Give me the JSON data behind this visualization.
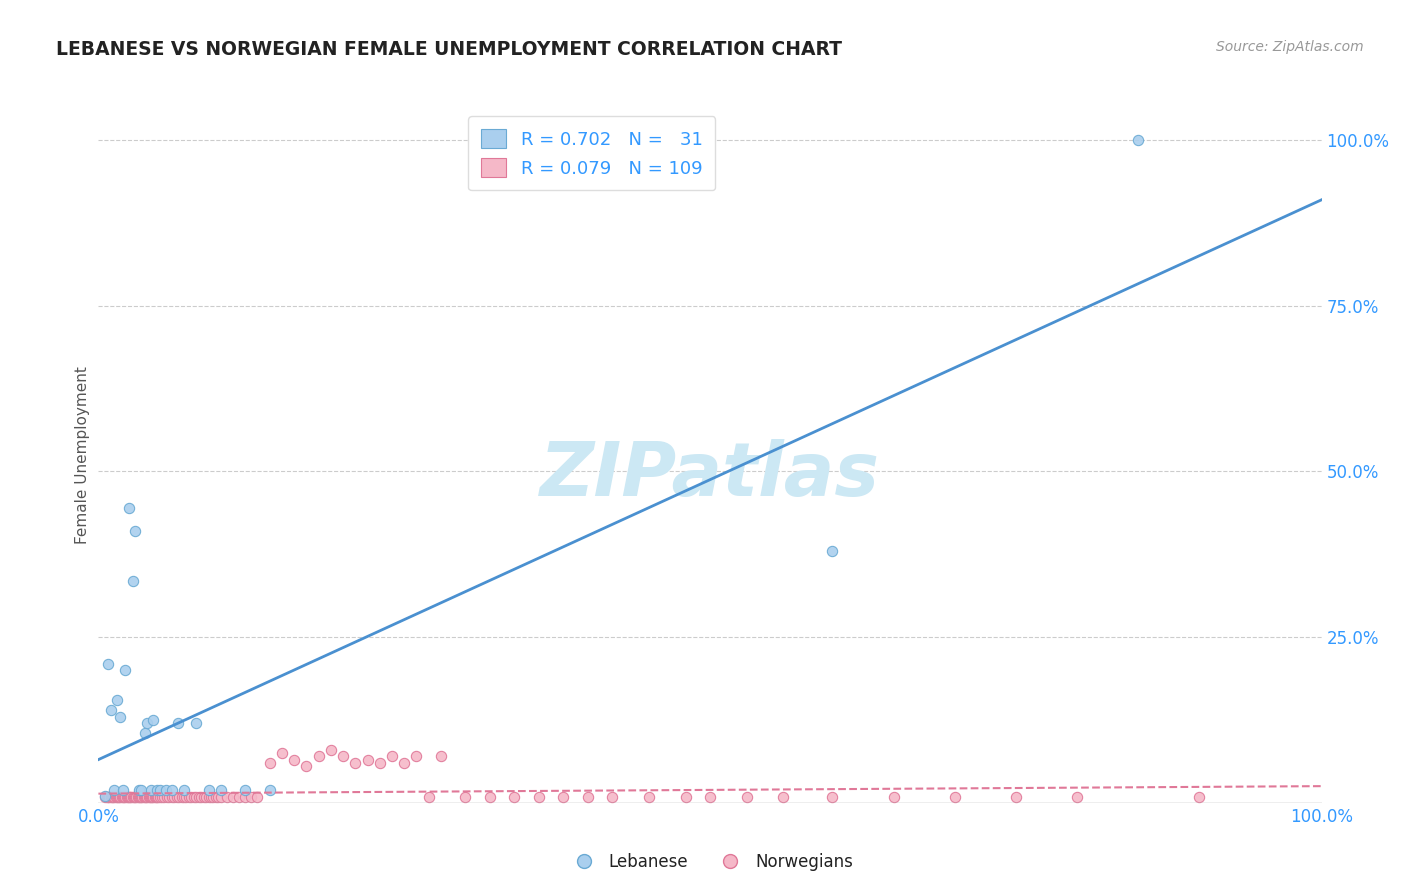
{
  "title": "LEBANESE VS NORWEGIAN FEMALE UNEMPLOYMENT CORRELATION CHART",
  "source": "Source: ZipAtlas.com",
  "ylabel": "Female Unemployment",
  "xlabel": "",
  "background_color": "#ffffff",
  "watermark": "ZIPatlas",
  "watermark_color": "#cce8f4",
  "lebanese_color": "#aacfee",
  "norwegian_color": "#f5b8c8",
  "lebanese_edge": "#6aaad4",
  "norwegian_edge": "#e07898",
  "line1_color": "#4a90d0",
  "line2_color": "#e07898",
  "title_color": "#222222",
  "axis_color": "#3399FF",
  "grid_color": "#cccccc",
  "xlim": [
    0,
    1.0
  ],
  "ylim": [
    0,
    1.05
  ],
  "leb_scatter_x": [
    0.005,
    0.008,
    0.01,
    0.013,
    0.015,
    0.018,
    0.02,
    0.022,
    0.025,
    0.028,
    0.03,
    0.033,
    0.035,
    0.038,
    0.04,
    0.043,
    0.045,
    0.048,
    0.05,
    0.055,
    0.06,
    0.065,
    0.07,
    0.08,
    0.09,
    0.1,
    0.12,
    0.14,
    0.6,
    0.85
  ],
  "leb_scatter_y": [
    0.01,
    0.21,
    0.14,
    0.02,
    0.155,
    0.13,
    0.02,
    0.2,
    0.445,
    0.335,
    0.41,
    0.02,
    0.02,
    0.105,
    0.12,
    0.02,
    0.125,
    0.02,
    0.02,
    0.02,
    0.02,
    0.12,
    0.02,
    0.12,
    0.02,
    0.02,
    0.02,
    0.02,
    0.38,
    1.0
  ],
  "nor_scatter_x": [
    0.005,
    0.007,
    0.008,
    0.009,
    0.01,
    0.011,
    0.012,
    0.013,
    0.014,
    0.015,
    0.016,
    0.017,
    0.018,
    0.019,
    0.02,
    0.021,
    0.022,
    0.023,
    0.024,
    0.025,
    0.026,
    0.027,
    0.028,
    0.029,
    0.03,
    0.031,
    0.032,
    0.033,
    0.034,
    0.035,
    0.036,
    0.037,
    0.038,
    0.039,
    0.04,
    0.041,
    0.042,
    0.043,
    0.044,
    0.045,
    0.046,
    0.047,
    0.048,
    0.049,
    0.05,
    0.052,
    0.054,
    0.056,
    0.058,
    0.06,
    0.062,
    0.064,
    0.066,
    0.068,
    0.07,
    0.072,
    0.074,
    0.076,
    0.078,
    0.08,
    0.082,
    0.084,
    0.086,
    0.088,
    0.09,
    0.092,
    0.094,
    0.096,
    0.098,
    0.1,
    0.105,
    0.11,
    0.115,
    0.12,
    0.125,
    0.13,
    0.14,
    0.15,
    0.16,
    0.17,
    0.18,
    0.19,
    0.2,
    0.21,
    0.22,
    0.23,
    0.24,
    0.25,
    0.26,
    0.27,
    0.28,
    0.3,
    0.32,
    0.34,
    0.36,
    0.38,
    0.4,
    0.42,
    0.45,
    0.48,
    0.5,
    0.53,
    0.56,
    0.6,
    0.65,
    0.7,
    0.75,
    0.8,
    0.9
  ],
  "nor_scatter_y": [
    0.008,
    0.008,
    0.008,
    0.008,
    0.008,
    0.008,
    0.008,
    0.008,
    0.008,
    0.008,
    0.008,
    0.008,
    0.008,
    0.008,
    0.008,
    0.008,
    0.008,
    0.008,
    0.008,
    0.008,
    0.008,
    0.008,
    0.008,
    0.008,
    0.008,
    0.008,
    0.008,
    0.008,
    0.008,
    0.008,
    0.008,
    0.008,
    0.008,
    0.008,
    0.008,
    0.008,
    0.008,
    0.008,
    0.008,
    0.008,
    0.008,
    0.008,
    0.008,
    0.008,
    0.008,
    0.008,
    0.008,
    0.008,
    0.008,
    0.008,
    0.008,
    0.008,
    0.008,
    0.008,
    0.008,
    0.008,
    0.008,
    0.008,
    0.008,
    0.008,
    0.008,
    0.008,
    0.008,
    0.008,
    0.008,
    0.008,
    0.008,
    0.008,
    0.008,
    0.008,
    0.008,
    0.008,
    0.008,
    0.008,
    0.008,
    0.008,
    0.06,
    0.075,
    0.065,
    0.055,
    0.07,
    0.08,
    0.07,
    0.06,
    0.065,
    0.06,
    0.07,
    0.06,
    0.07,
    0.008,
    0.07,
    0.008,
    0.008,
    0.008,
    0.008,
    0.008,
    0.008,
    0.008,
    0.008,
    0.008,
    0.008,
    0.008,
    0.008,
    0.008,
    0.008,
    0.008,
    0.008,
    0.008,
    0.008
  ]
}
